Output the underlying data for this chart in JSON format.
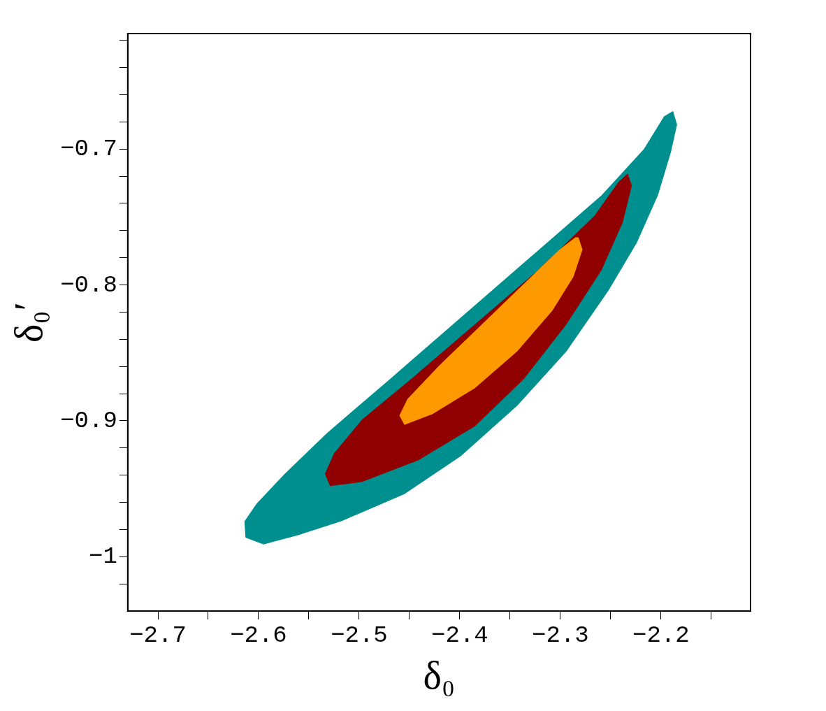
{
  "chart_data": {
    "type": "area",
    "xlabel": "δ₀",
    "ylabel": "δ₀′",
    "xlim": [
      -2.73,
      -2.111
    ],
    "ylim": [
      -1.04,
      -0.615
    ],
    "xticks": [
      -2.7,
      {
        "value": -2.65,
        "label": null
      },
      -2.6,
      {
        "value": -2.55,
        "label": null
      },
      -2.5,
      {
        "value": -2.45,
        "label": null
      },
      -2.4,
      {
        "value": -2.35,
        "label": null
      },
      -2.3,
      {
        "value": -2.25,
        "label": null
      },
      -2.2,
      {
        "value": -2.15,
        "label": null
      }
    ],
    "yticks": [
      {
        "value": -1.02,
        "label": null
      },
      -1,
      {
        "value": -0.98,
        "label": null
      },
      {
        "value": -0.96,
        "label": null
      },
      {
        "value": -0.94,
        "label": null
      },
      {
        "value": -0.92,
        "label": null
      },
      -0.9,
      {
        "value": -0.88,
        "label": null
      },
      {
        "value": -0.86,
        "label": null
      },
      {
        "value": -0.84,
        "label": null
      },
      {
        "value": -0.82,
        "label": null
      },
      -0.8,
      {
        "value": -0.78,
        "label": null
      },
      {
        "value": -0.76,
        "label": null
      },
      {
        "value": -0.74,
        "label": null
      },
      {
        "value": -0.72,
        "label": null
      },
      -0.7,
      {
        "value": -0.68,
        "label": null
      },
      {
        "value": -0.66,
        "label": null
      },
      {
        "value": -0.64,
        "label": null
      },
      {
        "value": -0.62,
        "label": null
      }
    ],
    "grid": false,
    "legend": false,
    "series": [
      {
        "color": "#008f8f",
        "x": [
          -2.188,
          -2.184,
          -2.19,
          -2.203,
          -2.224,
          -2.252,
          -2.294,
          -2.343,
          -2.399,
          -2.455,
          -2.518,
          -2.56,
          -2.595,
          -2.613,
          -2.614,
          -2.602,
          -2.574,
          -2.532,
          -2.469,
          -2.399,
          -2.329,
          -2.259,
          -2.217,
          -2.197
        ],
        "values": [
          -0.672,
          -0.682,
          -0.702,
          -0.734,
          -0.769,
          -0.804,
          -0.849,
          -0.889,
          -0.926,
          -0.954,
          -0.974,
          -0.984,
          -0.991,
          -0.986,
          -0.974,
          -0.961,
          -0.939,
          -0.909,
          -0.869,
          -0.824,
          -0.779,
          -0.734,
          -0.7,
          -0.676
        ]
      },
      {
        "color": "#900000",
        "x": [
          -2.233,
          -2.229,
          -2.238,
          -2.259,
          -2.294,
          -2.336,
          -2.385,
          -2.441,
          -2.497,
          -2.529,
          -2.534,
          -2.525,
          -2.497,
          -2.448,
          -2.385,
          -2.322,
          -2.266,
          -2.242
        ],
        "values": [
          -0.718,
          -0.727,
          -0.754,
          -0.789,
          -0.829,
          -0.869,
          -0.904,
          -0.929,
          -0.945,
          -0.948,
          -0.939,
          -0.924,
          -0.899,
          -0.869,
          -0.829,
          -0.789,
          -0.749,
          -0.724
        ]
      },
      {
        "color": "#ff9900",
        "x": [
          -2.282,
          -2.278,
          -2.287,
          -2.308,
          -2.343,
          -2.385,
          -2.427,
          -2.455,
          -2.46,
          -2.452,
          -2.42,
          -2.378,
          -2.336,
          -2.301,
          -2.285
        ],
        "values": [
          -0.765,
          -0.774,
          -0.794,
          -0.819,
          -0.849,
          -0.876,
          -0.895,
          -0.903,
          -0.896,
          -0.884,
          -0.859,
          -0.829,
          -0.799,
          -0.774,
          -0.765
        ]
      }
    ]
  }
}
